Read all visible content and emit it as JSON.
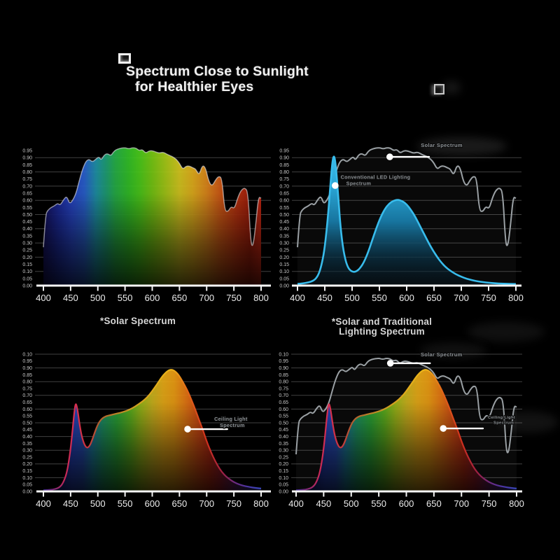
{
  "header": {
    "title_line1": "Spectrum Close to Sunlight",
    "title_line2": "for Healthier Eyes"
  },
  "captions": {
    "left": "*Solar Spectrum",
    "right_line1": "*Solar and Traditional",
    "right_line2": "Lighting Spectrum"
  },
  "colors": {
    "background": "#000000",
    "axis": "#f5f5f5",
    "grid": "rgba(255,255,255,0.25)",
    "x_tick_label": "#ececec",
    "y_tick_label": "#c9c9c9",
    "annotation_text": "#8d9296",
    "annotation_white": "#ffffff",
    "solar_outline": "#9aa0a4",
    "solar_outline_fill": "rgba(255,255,255,0.035)",
    "led_stroke": "#38bcec",
    "pale_edge": "rgba(242,242,246,0.55)"
  },
  "chart_data": {
    "x_ticks": [
      400,
      450,
      500,
      550,
      600,
      650,
      700,
      750,
      800
    ],
    "xlim": [
      400,
      800
    ],
    "ylim": [
      0,
      1
    ],
    "x_unit": "nm",
    "y_axis_top_labels": [
      "0.95",
      "0.90",
      "0.85",
      "0.80",
      "0.75",
      "0.70",
      "0.65",
      "0.60",
      "0.55",
      "0.50",
      "0.45",
      "0.40",
      "0.35",
      "0.30",
      "0.25",
      "0.20",
      "0.15",
      "0.10",
      "0.05",
      "0.00"
    ],
    "y_axis_bottom_labels": [
      "0.10",
      "0.95",
      "0.90",
      "0.85",
      "0.80",
      "0.75",
      "0.70",
      "0.65",
      "0.60",
      "0.55",
      "0.50",
      "0.45",
      "0.40",
      "0.35",
      "0.30",
      "0.25",
      "0.20",
      "0.15",
      "0.10",
      "0.05",
      "0.00"
    ],
    "curves": {
      "solar": [
        [
          400,
          0.27
        ],
        [
          404,
          0.5
        ],
        [
          408,
          0.53
        ],
        [
          414,
          0.55
        ],
        [
          420,
          0.56
        ],
        [
          426,
          0.58
        ],
        [
          431,
          0.565
        ],
        [
          437,
          0.605
        ],
        [
          443,
          0.63
        ],
        [
          448,
          0.575
        ],
        [
          454,
          0.6
        ],
        [
          460,
          0.65
        ],
        [
          466,
          0.74
        ],
        [
          472,
          0.82
        ],
        [
          478,
          0.875
        ],
        [
          484,
          0.89
        ],
        [
          490,
          0.87
        ],
        [
          496,
          0.888
        ],
        [
          502,
          0.908
        ],
        [
          506,
          0.882
        ],
        [
          512,
          0.92
        ],
        [
          518,
          0.93
        ],
        [
          524,
          0.912
        ],
        [
          530,
          0.948
        ],
        [
          537,
          0.962
        ],
        [
          544,
          0.968
        ],
        [
          551,
          0.97
        ],
        [
          557,
          0.962
        ],
        [
          563,
          0.97
        ],
        [
          570,
          0.968
        ],
        [
          576,
          0.95
        ],
        [
          582,
          0.958
        ],
        [
          588,
          0.932
        ],
        [
          594,
          0.948
        ],
        [
          600,
          0.95
        ],
        [
          607,
          0.94
        ],
        [
          613,
          0.932
        ],
        [
          620,
          0.94
        ],
        [
          628,
          0.922
        ],
        [
          636,
          0.91
        ],
        [
          644,
          0.89
        ],
        [
          650,
          0.862
        ],
        [
          656,
          0.818
        ],
        [
          662,
          0.84
        ],
        [
          668,
          0.842
        ],
        [
          674,
          0.83
        ],
        [
          680,
          0.82
        ],
        [
          686,
          0.775
        ],
        [
          692,
          0.848
        ],
        [
          698,
          0.83
        ],
        [
          704,
          0.73
        ],
        [
          710,
          0.7
        ],
        [
          716,
          0.742
        ],
        [
          722,
          0.77
        ],
        [
          728,
          0.758
        ],
        [
          733,
          0.53
        ],
        [
          739,
          0.518
        ],
        [
          745,
          0.558
        ],
        [
          751,
          0.54
        ],
        [
          757,
          0.618
        ],
        [
          763,
          0.67
        ],
        [
          770,
          0.69
        ],
        [
          776,
          0.658
        ],
        [
          781,
          0.3
        ],
        [
          785,
          0.27
        ],
        [
          790,
          0.42
        ],
        [
          795,
          0.625
        ],
        [
          800,
          0.615
        ]
      ],
      "led": [
        [
          400,
          0.012
        ],
        [
          410,
          0.016
        ],
        [
          420,
          0.022
        ],
        [
          428,
          0.032
        ],
        [
          434,
          0.05
        ],
        [
          440,
          0.09
        ],
        [
          445,
          0.16
        ],
        [
          450,
          0.27
        ],
        [
          455,
          0.45
        ],
        [
          460,
          0.7
        ],
        [
          464,
          0.88
        ],
        [
          467,
          0.92
        ],
        [
          470,
          0.855
        ],
        [
          474,
          0.66
        ],
        [
          478,
          0.45
        ],
        [
          482,
          0.3
        ],
        [
          487,
          0.19
        ],
        [
          492,
          0.13
        ],
        [
          497,
          0.105
        ],
        [
          503,
          0.095
        ],
        [
          509,
          0.102
        ],
        [
          515,
          0.125
        ],
        [
          521,
          0.16
        ],
        [
          528,
          0.22
        ],
        [
          536,
          0.31
        ],
        [
          544,
          0.4
        ],
        [
          552,
          0.48
        ],
        [
          560,
          0.54
        ],
        [
          568,
          0.578
        ],
        [
          576,
          0.598
        ],
        [
          584,
          0.605
        ],
        [
          592,
          0.595
        ],
        [
          600,
          0.572
        ],
        [
          608,
          0.532
        ],
        [
          616,
          0.482
        ],
        [
          624,
          0.422
        ],
        [
          632,
          0.362
        ],
        [
          640,
          0.302
        ],
        [
          648,
          0.248
        ],
        [
          656,
          0.2
        ],
        [
          664,
          0.16
        ],
        [
          672,
          0.128
        ],
        [
          680,
          0.104
        ],
        [
          690,
          0.08
        ],
        [
          700,
          0.062
        ],
        [
          710,
          0.048
        ],
        [
          720,
          0.038
        ],
        [
          730,
          0.03
        ],
        [
          740,
          0.024
        ],
        [
          750,
          0.02
        ],
        [
          762,
          0.016
        ],
        [
          775,
          0.014
        ],
        [
          800,
          0.011
        ]
      ],
      "ceiling": [
        [
          400,
          0.008
        ],
        [
          412,
          0.011
        ],
        [
          422,
          0.017
        ],
        [
          430,
          0.03
        ],
        [
          436,
          0.06
        ],
        [
          442,
          0.12
        ],
        [
          447,
          0.22
        ],
        [
          452,
          0.38
        ],
        [
          456,
          0.55
        ],
        [
          459,
          0.648
        ],
        [
          462,
          0.615
        ],
        [
          466,
          0.5
        ],
        [
          470,
          0.408
        ],
        [
          475,
          0.342
        ],
        [
          480,
          0.315
        ],
        [
          485,
          0.33
        ],
        [
          490,
          0.378
        ],
        [
          495,
          0.438
        ],
        [
          500,
          0.488
        ],
        [
          505,
          0.52
        ],
        [
          510,
          0.538
        ],
        [
          516,
          0.55
        ],
        [
          524,
          0.556
        ],
        [
          532,
          0.565
        ],
        [
          540,
          0.572
        ],
        [
          548,
          0.581
        ],
        [
          556,
          0.592
        ],
        [
          564,
          0.608
        ],
        [
          572,
          0.628
        ],
        [
          580,
          0.65
        ],
        [
          588,
          0.676
        ],
        [
          596,
          0.71
        ],
        [
          604,
          0.754
        ],
        [
          612,
          0.8
        ],
        [
          620,
          0.848
        ],
        [
          628,
          0.878
        ],
        [
          634,
          0.888
        ],
        [
          640,
          0.883
        ],
        [
          648,
          0.853
        ],
        [
          656,
          0.8
        ],
        [
          664,
          0.742
        ],
        [
          672,
          0.668
        ],
        [
          680,
          0.588
        ],
        [
          688,
          0.5
        ],
        [
          694,
          0.438
        ],
        [
          700,
          0.365
        ],
        [
          708,
          0.285
        ],
        [
          716,
          0.218
        ],
        [
          724,
          0.163
        ],
        [
          732,
          0.122
        ],
        [
          740,
          0.094
        ],
        [
          750,
          0.067
        ],
        [
          760,
          0.05
        ],
        [
          770,
          0.039
        ],
        [
          780,
          0.031
        ],
        [
          790,
          0.025
        ],
        [
          800,
          0.021
        ]
      ]
    },
    "gradients": {
      "rainbow_solar": [
        [
          400,
          "#151161"
        ],
        [
          428,
          "#1d2da4"
        ],
        [
          452,
          "#2847cc"
        ],
        [
          475,
          "#2a62d2"
        ],
        [
          497,
          "#1f94a8"
        ],
        [
          515,
          "#1fa076"
        ],
        [
          532,
          "#27b148"
        ],
        [
          556,
          "#33c128"
        ],
        [
          576,
          "#4bcb1b"
        ],
        [
          600,
          "#78c914"
        ],
        [
          625,
          "#a8cb18"
        ],
        [
          650,
          "#d8ca20"
        ],
        [
          675,
          "#e5b01d"
        ],
        [
          700,
          "#e28a1c"
        ],
        [
          725,
          "#d65c16"
        ],
        [
          755,
          "#c03410"
        ],
        [
          780,
          "#a81e0a"
        ],
        [
          800,
          "#d02812"
        ]
      ],
      "rainbow_warm": [
        [
          400,
          "#151161"
        ],
        [
          430,
          "#1d2da4"
        ],
        [
          452,
          "#2847cc"
        ],
        [
          472,
          "#2a55c8"
        ],
        [
          490,
          "#1f86a8"
        ],
        [
          510,
          "#21a06a"
        ],
        [
          535,
          "#2eb13a"
        ],
        [
          560,
          "#63bd20"
        ],
        [
          580,
          "#a2c01a"
        ],
        [
          600,
          "#d0b81e"
        ],
        [
          620,
          "#ecae18"
        ],
        [
          640,
          "#f0a014"
        ],
        [
          660,
          "#ec7e14"
        ],
        [
          685,
          "#e05014"
        ],
        [
          705,
          "#d03014"
        ],
        [
          725,
          "#b02030"
        ],
        [
          750,
          "#73256e"
        ],
        [
          775,
          "#4a339e"
        ],
        [
          800,
          "#3944b8"
        ]
      ],
      "warm_stroke": [
        [
          400,
          "#3a2a90"
        ],
        [
          440,
          "#c42858"
        ],
        [
          460,
          "#d8304e"
        ],
        [
          480,
          "#c83240"
        ],
        [
          500,
          "#b05a30"
        ],
        [
          530,
          "#b97d28"
        ],
        [
          560,
          "#c99a22"
        ],
        [
          600,
          "#dfa81c"
        ],
        [
          635,
          "#eeb81a"
        ],
        [
          665,
          "#e2661a"
        ],
        [
          700,
          "#d0301e"
        ],
        [
          728,
          "#a02040"
        ],
        [
          752,
          "#6c2a80"
        ],
        [
          775,
          "#4a35a2"
        ],
        [
          800,
          "#3948bc"
        ]
      ],
      "led_fill": [
        [
          0,
          "#46c4f0"
        ],
        [
          0.3,
          "#2aa6d6"
        ],
        [
          0.55,
          "#17749e"
        ],
        [
          0.8,
          "rgba(10,50,70,0.75)"
        ],
        [
          1,
          "rgba(4,20,30,0.4)"
        ]
      ],
      "fade_overlay": [
        [
          0,
          "rgba(0,0,0,0)"
        ],
        [
          0.35,
          "rgba(0,0,0,0.06)"
        ],
        [
          0.7,
          "rgba(0,0,0,0.5)"
        ],
        [
          1,
          "rgba(0,0,0,0.82)"
        ]
      ]
    },
    "charts": [
      {
        "id": "solar-spectrum",
        "type": "area",
        "position": "top-left",
        "series": [
          {
            "name": "Solar Spectrum",
            "curve": "solar",
            "style": "rainbow"
          }
        ],
        "annotations": []
      },
      {
        "id": "solar-vs-led",
        "type": "area",
        "position": "top-right",
        "series": [
          {
            "name": "Solar Spectrum",
            "curve": "solar",
            "style": "outline"
          },
          {
            "name": "Conventional LED Lighting Spectrum",
            "curve": "led",
            "style": "led"
          }
        ],
        "annotations": [
          {
            "label_lines": [
              "Solar Spectrum"
            ],
            "dot_x": 569,
            "dot_y": 0.906,
            "line_to_x": 641,
            "label_x": 626,
            "label_y": 0.975,
            "font_px": 7.5
          },
          {
            "label_lines": [
              "Conventional LED Lighting",
              "Spectrum"
            ],
            "dot_x": 469,
            "dot_y": 0.704,
            "line_to_x": null,
            "label_x": 479,
            "label_y": 0.752,
            "font_px": 7.2
          }
        ]
      },
      {
        "id": "ceiling-light",
        "type": "area",
        "position": "bottom-left",
        "series": [
          {
            "name": "Ceiling Light Spectrum",
            "curve": "ceiling",
            "style": "warm"
          }
        ],
        "annotations": [
          {
            "label_lines": [
              "Ceiling Light",
              "Spectrum"
            ],
            "dot_x": 665,
            "dot_y": 0.454,
            "line_to_x": 738,
            "label_x": 714,
            "label_y": 0.515,
            "font_px": 7.2
          }
        ]
      },
      {
        "id": "solar-vs-ceiling",
        "type": "area",
        "position": "bottom-right",
        "series": [
          {
            "name": "Solar Spectrum",
            "curve": "solar",
            "style": "outline"
          },
          {
            "name": "Ceiling Light Spectrum",
            "curve": "ceiling",
            "style": "warm"
          }
        ],
        "annotations": [
          {
            "label_lines": [
              "Solar Spectrum"
            ],
            "dot_x": 571,
            "dot_y": 0.934,
            "line_to_x": 643,
            "label_x": 626,
            "label_y": 0.985,
            "font_px": 7.5
          },
          {
            "label_lines": [
              "Ceiling Light",
              "Spectrum"
            ],
            "dot_x": 667,
            "dot_y": 0.459,
            "line_to_x": 739,
            "label_x": 748,
            "label_y": 0.53,
            "font_px": 5.8
          }
        ]
      }
    ]
  }
}
